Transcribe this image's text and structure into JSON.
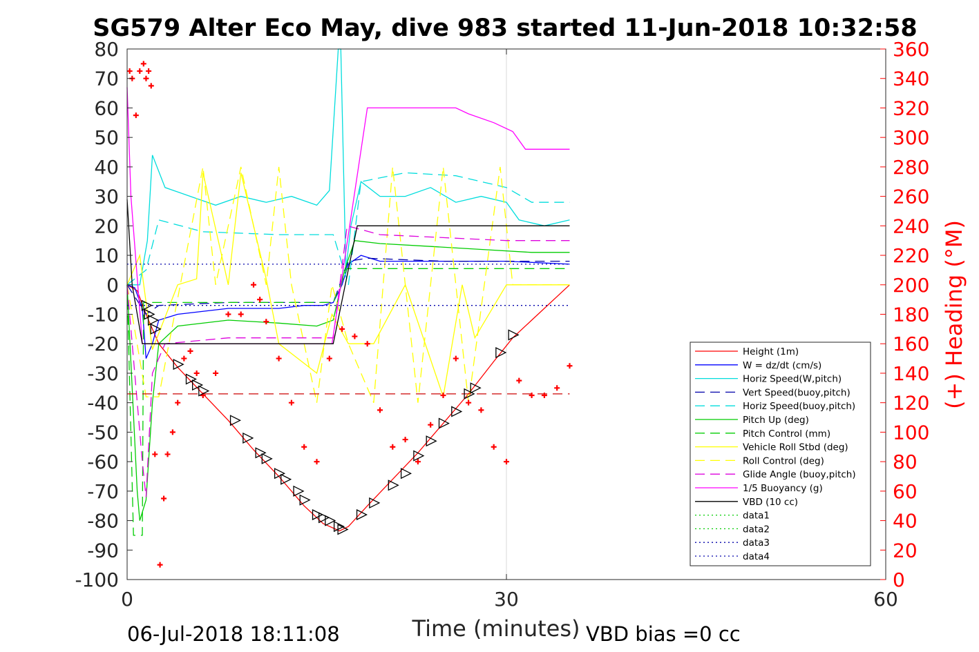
{
  "chart_data": {
    "type": "line",
    "title": "SG579 Alter Eco May, dive 983 started 11-Jun-2018 10:32:58",
    "xlabel": "Time (minutes)",
    "ylabel_right": "(+) Heading (°M)",
    "xlim": [
      0,
      60
    ],
    "ylim": [
      -100,
      80
    ],
    "ylim_right": [
      0,
      360
    ],
    "x_ticks": [
      "0",
      "30",
      "60"
    ],
    "y_ticks": [
      "80",
      "70",
      "60",
      "50",
      "40",
      "30",
      "20",
      "10",
      "0",
      "-10",
      "-20",
      "-30",
      "-40",
      "-50",
      "-60",
      "-70",
      "-80",
      "-90",
      "-100"
    ],
    "y_ticks_right": [
      "360",
      "340",
      "320",
      "300",
      "280",
      "260",
      "240",
      "220",
      "200",
      "180",
      "160",
      "140",
      "120",
      "100",
      "80",
      "60",
      "40",
      "20",
      "0"
    ],
    "x_grid": [
      30
    ],
    "footer_left": "06-Jul-2018 18:11:08",
    "footer_right": "VBD bias =0 cc",
    "legend_position": "right",
    "series": [
      {
        "name": "Height (1m)",
        "color": "#ff0000",
        "style": "solid",
        "x": [
          0,
          0.8,
          1.5,
          2.5,
          4,
          6,
          8,
          10,
          12,
          14,
          15.5,
          16.8,
          17.5,
          19,
          21,
          23,
          25,
          27,
          29,
          30.5,
          32,
          35
        ],
        "y": [
          0,
          -2,
          -10,
          -20,
          -28,
          -37,
          -46,
          -56,
          -65,
          -75,
          -81,
          -83.5,
          -82,
          -75,
          -66,
          -57,
          -47,
          -37,
          -26,
          -18,
          -12,
          0
        ]
      },
      {
        "name": "W = dz/dt (cm/s)",
        "color": "#0000ff",
        "style": "solid",
        "x": [
          0,
          0.6,
          1.2,
          1.5,
          2.0,
          2.5,
          4,
          8,
          12,
          14,
          15.5,
          16.3,
          17,
          17.5,
          18.5,
          20,
          25,
          30,
          35
        ],
        "y": [
          0,
          -1,
          -8,
          -25,
          -20,
          -12,
          -10,
          -8,
          -8,
          -7,
          -7,
          -6,
          0,
          7,
          10,
          8,
          8,
          8,
          7
        ]
      },
      {
        "name": "Horiz Speed(W,pitch)",
        "color": "#00dddd",
        "style": "solid",
        "x": [
          0,
          1,
          1.6,
          2.0,
          3,
          5,
          7,
          9,
          11,
          13,
          15,
          16,
          16.7,
          16.9,
          17.3,
          17.7,
          18.5,
          20,
          22,
          24,
          26,
          28,
          30,
          31,
          33,
          35
        ],
        "y": [
          0,
          0,
          15,
          44,
          33,
          30,
          27,
          30,
          28,
          30,
          27,
          32,
          80,
          80,
          5,
          20,
          35,
          30,
          30,
          33,
          28,
          30,
          28,
          22,
          20,
          22
        ]
      },
      {
        "name": "Vert Speed(buoy,pitch)",
        "color": "#0000aa",
        "style": "dashed",
        "x": [
          0,
          1.5,
          2.5,
          8,
          16.3,
          17.5,
          19,
          25,
          30,
          35
        ],
        "y": [
          0,
          -10,
          -7,
          -6,
          -6,
          8,
          9,
          8,
          8,
          8
        ]
      },
      {
        "name": "Horiz Speed(buoy,pitch)",
        "color": "#00dddd",
        "style": "dashed",
        "x": [
          0,
          1.5,
          2.5,
          6,
          12,
          16.3,
          17.5,
          18.5,
          22,
          26,
          30,
          32,
          35
        ],
        "y": [
          0,
          5,
          22,
          18,
          17,
          17,
          0,
          35,
          38,
          37,
          33,
          28,
          28
        ]
      },
      {
        "name": "Pitch Up (deg)",
        "color": "#00cc00",
        "style": "solid",
        "x": [
          0,
          0.8,
          1.0,
          1.5,
          2.0,
          2.5,
          4,
          8,
          12,
          15,
          16.3,
          17.2,
          18,
          20,
          24,
          28,
          32,
          35
        ],
        "y": [
          0,
          -70,
          -80,
          -73,
          -40,
          -20,
          -14,
          -12,
          -13,
          -14,
          -12,
          5,
          15,
          14,
          13,
          12,
          11,
          11
        ]
      },
      {
        "name": "Pitch Control (mm)",
        "color": "#00cc00",
        "style": "dashed",
        "x": [
          0,
          0.5,
          1.2,
          1.3,
          2.0,
          4,
          16.3,
          17.4,
          35
        ],
        "y": [
          0,
          -85,
          -85,
          -6,
          -6,
          -6,
          -6,
          5.5,
          5.5
        ]
      },
      {
        "name": "Vehicle Roll Stbd (deg)",
        "color": "#ffff00",
        "style": "solid",
        "x": [
          0,
          1,
          2,
          4,
          5.5,
          6,
          8,
          9,
          11,
          12,
          15,
          16.2,
          17.5,
          19.5,
          22,
          25,
          26.5,
          27.5,
          30,
          32,
          35
        ],
        "y": [
          0,
          10,
          -22,
          0,
          2,
          38,
          0,
          38,
          2,
          -20,
          -30,
          -10,
          -20,
          -20,
          0,
          -38,
          0,
          -18,
          0,
          0,
          0
        ]
      },
      {
        "name": "Roll Control (deg)",
        "color": "#ffff00",
        "style": "dashed",
        "x": [
          0,
          1.5,
          2.5,
          6,
          7,
          9,
          11,
          12,
          13,
          15,
          16.2,
          17.5,
          19.5,
          21,
          23,
          25,
          27,
          29.5,
          30.5,
          35
        ],
        "y": [
          0,
          -38,
          -38,
          40,
          0,
          40,
          0,
          40,
          0,
          -40,
          0,
          -20,
          -40,
          40,
          -40,
          40,
          -40,
          40,
          0,
          0
        ]
      },
      {
        "name": "Glide Angle (buoy,pitch)",
        "color": "#dd00dd",
        "style": "dashed",
        "x": [
          0,
          1.2,
          1.5,
          2.0,
          3,
          8,
          12,
          16.3,
          17.4,
          20,
          25,
          30,
          35
        ],
        "y": [
          0,
          -60,
          -72,
          -30,
          -20,
          -18,
          -18,
          -18,
          20,
          17,
          16,
          15,
          15
        ]
      },
      {
        "name": "1/5 Buoyancy (g)",
        "color": "#ff00ff",
        "style": "solid",
        "x": [
          0,
          0.3,
          1.2,
          2.5,
          16.2,
          19,
          20,
          26,
          27,
          29,
          30.5,
          31.5,
          35
        ],
        "y": [
          67,
          30,
          -20,
          -20,
          -20,
          60,
          60,
          60,
          58,
          55,
          52,
          46,
          46
        ]
      },
      {
        "name": "VBD (10 cc)",
        "color": "#000000",
        "style": "solid",
        "x": [
          0,
          0.4,
          1.2,
          3,
          16.3,
          18.2,
          35
        ],
        "y": [
          29,
          0,
          -20,
          -20,
          -20,
          20,
          20
        ]
      },
      {
        "name": "data1",
        "color": "#00cc00",
        "style": "dotted",
        "x": [],
        "y": []
      },
      {
        "name": "data2",
        "color": "#00cc00",
        "style": "dotted",
        "x": [],
        "y": []
      },
      {
        "name": "data3",
        "color": "#0000aa",
        "style": "dotted",
        "x": [
          0,
          35
        ],
        "y": [
          7,
          7
        ]
      },
      {
        "name": "data4",
        "color": "#0000aa",
        "style": "dotted",
        "x": [
          0,
          35
        ],
        "y": [
          -7,
          -7
        ]
      }
    ],
    "reference_lines": [
      {
        "color": "#cc0000",
        "style": "dashed",
        "x": [
          0,
          35
        ],
        "y": [
          -37,
          -37
        ]
      }
    ],
    "heading_points": {
      "color": "#ff0000",
      "axis": "right",
      "x": [
        0.2,
        0.4,
        0.7,
        1,
        1.3,
        1.5,
        1.7,
        1.9,
        2.2,
        2.6,
        2.9,
        3.2,
        3.6,
        4,
        4.5,
        5,
        5.5,
        6,
        7,
        8,
        9,
        10,
        10.5,
        11,
        12,
        13,
        14,
        15,
        16,
        17,
        18,
        19,
        20,
        21,
        22,
        23,
        24,
        25,
        26,
        27,
        28,
        29,
        30,
        31,
        32,
        33,
        34,
        35
      ],
      "y": [
        345,
        340,
        315,
        345,
        350,
        340,
        345,
        335,
        85,
        10,
        55,
        85,
        100,
        120,
        150,
        155,
        140,
        125,
        140,
        180,
        180,
        200,
        190,
        175,
        150,
        120,
        90,
        80,
        150,
        170,
        165,
        160,
        115,
        90,
        95,
        80,
        105,
        125,
        150,
        120,
        115,
        90,
        80,
        135,
        125,
        125,
        130,
        145
      ]
    },
    "markers": {
      "color": "#000000",
      "shape": "triangle",
      "x": [
        1.5,
        1.7,
        2.0,
        2.2,
        4,
        5,
        5.5,
        6,
        8.5,
        9.5,
        10.5,
        11,
        12,
        12.5,
        13.5,
        14,
        15,
        15.5,
        16,
        16.7,
        17,
        18.5,
        19.5,
        21,
        22,
        23,
        24,
        25,
        26,
        27,
        27.5,
        29.5,
        30.5
      ],
      "y": [
        -7,
        -10,
        -12,
        -15,
        -27,
        -32,
        -34,
        -36,
        -46,
        -52,
        -57,
        -59,
        -64,
        -66,
        -70,
        -73,
        -78,
        -79,
        -80,
        -82,
        -83,
        -78,
        -74,
        -68,
        -64,
        -58,
        -53,
        -47,
        -43,
        -37,
        -35,
        -23,
        -17
      ]
    }
  }
}
